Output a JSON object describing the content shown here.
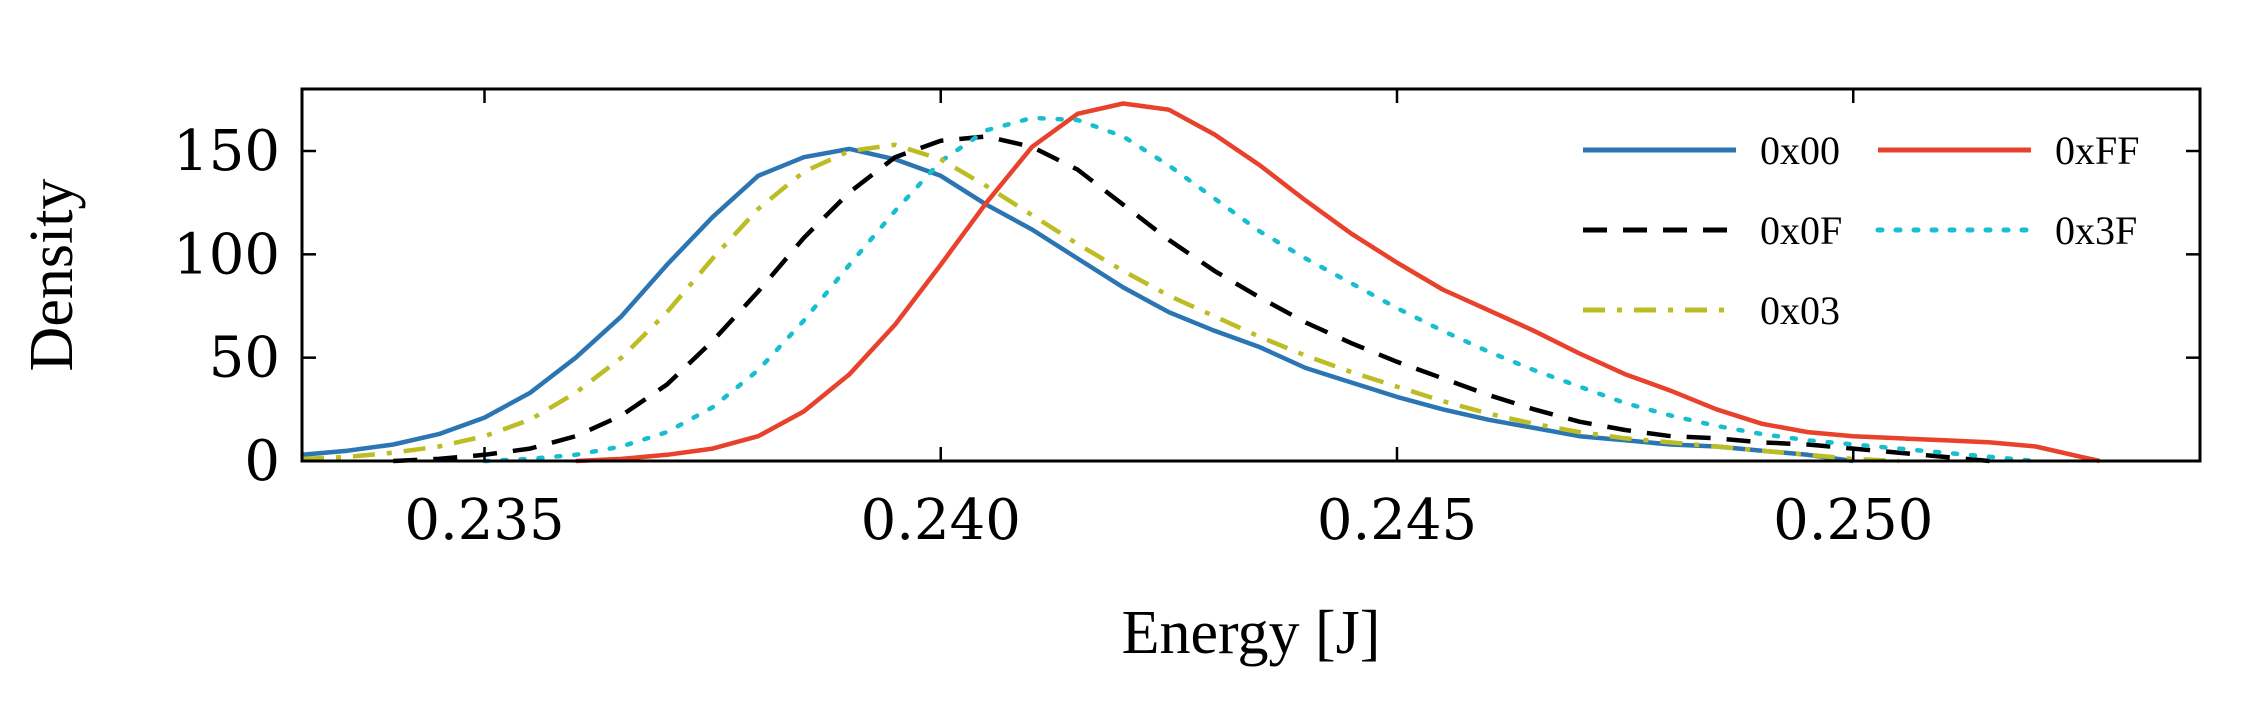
{
  "chart_data": {
    "type": "line",
    "title": "",
    "xlabel": "Energy [J]",
    "ylabel": "Density",
    "xlim": [
      0.233,
      0.2538
    ],
    "ylim": [
      0,
      180
    ],
    "xticks": [
      0.235,
      0.24,
      0.245,
      0.25
    ],
    "xtick_labels": [
      "0.235",
      "0.240",
      "0.245",
      "0.250"
    ],
    "yticks": [
      0,
      50,
      100,
      150
    ],
    "ytick_labels": [
      "0",
      "50",
      "100",
      "150"
    ],
    "grid": false,
    "legend_position": "top-right",
    "series": [
      {
        "name": "0x00",
        "color": "#2c75b3",
        "dash": "solid",
        "x": [
          0.233,
          0.2335,
          0.234,
          0.2345,
          0.235,
          0.2355,
          0.236,
          0.2365,
          0.237,
          0.2375,
          0.238,
          0.2385,
          0.239,
          0.2395,
          0.24,
          0.2405,
          0.241,
          0.2415,
          0.242,
          0.2425,
          0.243,
          0.2435,
          0.244,
          0.2445,
          0.245,
          0.2455,
          0.246,
          0.2465,
          0.247,
          0.2475,
          0.248,
          0.2485,
          0.249,
          0.2495,
          0.25
        ],
        "y": [
          3,
          5,
          8,
          13,
          21,
          33,
          50,
          70,
          95,
          118,
          138,
          147,
          151,
          146,
          138,
          124,
          112,
          98,
          84,
          72,
          63,
          55,
          45,
          38,
          31,
          25,
          20,
          16,
          12,
          10,
          8,
          7,
          5,
          3,
          0
        ]
      },
      {
        "name": "0xFF",
        "color": "#e8412c",
        "dash": "solid",
        "x": [
          0.236,
          0.2365,
          0.237,
          0.2375,
          0.238,
          0.2385,
          0.239,
          0.2395,
          0.24,
          0.2405,
          0.241,
          0.2415,
          0.242,
          0.2425,
          0.243,
          0.2435,
          0.244,
          0.2445,
          0.245,
          0.2455,
          0.246,
          0.2465,
          0.247,
          0.2475,
          0.248,
          0.2485,
          0.249,
          0.2495,
          0.25,
          0.2505,
          0.251,
          0.2515,
          0.252,
          0.2525,
          0.2527
        ],
        "y": [
          0,
          1,
          3,
          6,
          12,
          24,
          42,
          66,
          95,
          125,
          152,
          168,
          173,
          170,
          158,
          143,
          126,
          110,
          96,
          83,
          73,
          63,
          52,
          42,
          34,
          25,
          18,
          14,
          12,
          11,
          10,
          9,
          7,
          2,
          0
        ]
      },
      {
        "name": "0x0F",
        "color": "#000000",
        "dash": "dashed",
        "x": [
          0.234,
          0.2345,
          0.235,
          0.2355,
          0.236,
          0.2365,
          0.237,
          0.2375,
          0.238,
          0.2385,
          0.239,
          0.2395,
          0.24,
          0.2405,
          0.241,
          0.2415,
          0.242,
          0.2425,
          0.243,
          0.2435,
          0.244,
          0.2445,
          0.245,
          0.2455,
          0.246,
          0.2465,
          0.247,
          0.2475,
          0.248,
          0.2485,
          0.249,
          0.2495,
          0.25,
          0.2505,
          0.251,
          0.2515
        ],
        "y": [
          0,
          1,
          3,
          6,
          12,
          22,
          37,
          58,
          82,
          108,
          130,
          147,
          155,
          157,
          152,
          141,
          124,
          107,
          92,
          79,
          67,
          57,
          48,
          40,
          32,
          25,
          19,
          15,
          12,
          11,
          9,
          8,
          6,
          4,
          2,
          0
        ]
      },
      {
        "name": "0x3F",
        "color": "#17becf",
        "dash": "dotted",
        "x": [
          0.235,
          0.2355,
          0.236,
          0.2365,
          0.237,
          0.2375,
          0.238,
          0.2385,
          0.239,
          0.2395,
          0.24,
          0.2405,
          0.241,
          0.2415,
          0.242,
          0.2425,
          0.243,
          0.2435,
          0.244,
          0.2445,
          0.245,
          0.2455,
          0.246,
          0.2465,
          0.247,
          0.2475,
          0.248,
          0.2485,
          0.249,
          0.2495,
          0.25,
          0.2505,
          0.251,
          0.2515,
          0.252
        ],
        "y": [
          0,
          1,
          3,
          7,
          14,
          26,
          44,
          68,
          95,
          121,
          145,
          160,
          166,
          165,
          157,
          143,
          127,
          111,
          98,
          86,
          74,
          63,
          53,
          44,
          36,
          28,
          22,
          17,
          13,
          10,
          8,
          6,
          4,
          2,
          0
        ]
      },
      {
        "name": "0x03",
        "color": "#bcbd22",
        "dash": "dashdot",
        "x": [
          0.233,
          0.2335,
          0.234,
          0.2345,
          0.235,
          0.2355,
          0.236,
          0.2365,
          0.237,
          0.2375,
          0.238,
          0.2385,
          0.239,
          0.2395,
          0.24,
          0.2405,
          0.241,
          0.2415,
          0.242,
          0.2425,
          0.243,
          0.2435,
          0.244,
          0.2445,
          0.245,
          0.2455,
          0.246,
          0.2465,
          0.247,
          0.2475,
          0.248,
          0.2485,
          0.249,
          0.2495,
          0.25,
          0.2505
        ],
        "y": [
          1,
          2,
          4,
          7,
          12,
          20,
          33,
          50,
          72,
          98,
          122,
          140,
          150,
          153,
          146,
          133,
          119,
          105,
          92,
          80,
          70,
          60,
          51,
          43,
          36,
          29,
          23,
          18,
          14,
          11,
          9,
          7,
          5,
          3,
          1,
          0
        ]
      }
    ],
    "legend_entries": [
      "0x00",
      "0xFF",
      "0x0F",
      "0x3F",
      "0x03"
    ]
  }
}
